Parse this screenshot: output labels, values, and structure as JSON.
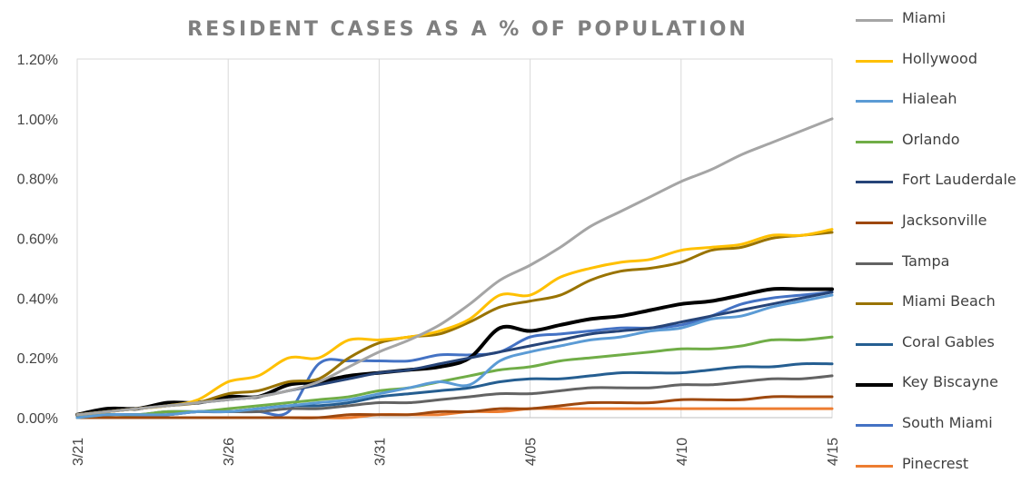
{
  "chart_data": {
    "type": "line",
    "title": "RESIDENT CASES AS A % OF POPULATION",
    "xlabel": "",
    "ylabel": "",
    "x": [
      "3/21",
      "3/22",
      "3/23",
      "3/24",
      "3/25",
      "3/26",
      "3/27",
      "3/28",
      "3/29",
      "3/30",
      "3/31",
      "4/01",
      "4/02",
      "4/03",
      "4/04",
      "4/05",
      "4/06",
      "4/07",
      "4/08",
      "4/09",
      "4/10",
      "4/11",
      "4/12",
      "4/13",
      "4/14",
      "4/15"
    ],
    "x_tick_labels": [
      "3/21",
      "3/26",
      "3/31",
      "4/05",
      "4/10",
      "4/15"
    ],
    "y_tick_labels": [
      "0.00%",
      "0.20%",
      "0.40%",
      "0.60%",
      "0.80%",
      "1.00%",
      "1.20%"
    ],
    "ylim": [
      0,
      1.2
    ],
    "y_unit": "%",
    "grid": "vertical lines at labeled dates",
    "legend_position": "right",
    "series": [
      {
        "name": "Miami",
        "color": "#a5a5a5",
        "width": 3,
        "values": [
          0.01,
          0.02,
          0.03,
          0.04,
          0.05,
          0.06,
          0.07,
          0.09,
          0.12,
          0.17,
          0.22,
          0.26,
          0.31,
          0.38,
          0.46,
          0.51,
          0.57,
          0.64,
          0.69,
          0.74,
          0.79,
          0.83,
          0.88,
          0.92,
          0.96,
          1.0
        ]
      },
      {
        "name": "Hollywood",
        "color": "#ffc000",
        "width": 3,
        "values": [
          0.01,
          0.02,
          0.03,
          0.04,
          0.06,
          0.12,
          0.14,
          0.2,
          0.2,
          0.26,
          0.26,
          0.27,
          0.29,
          0.33,
          0.41,
          0.41,
          0.47,
          0.5,
          0.52,
          0.53,
          0.56,
          0.57,
          0.58,
          0.61,
          0.61,
          0.63
        ]
      },
      {
        "name": "Hialeah",
        "color": "#5b9bd5",
        "width": 3,
        "values": [
          0.0,
          0.01,
          0.01,
          0.01,
          0.02,
          0.02,
          0.03,
          0.04,
          0.05,
          0.06,
          0.08,
          0.1,
          0.12,
          0.11,
          0.19,
          0.22,
          0.24,
          0.26,
          0.27,
          0.29,
          0.3,
          0.33,
          0.34,
          0.37,
          0.39,
          0.41
        ]
      },
      {
        "name": "Orlando",
        "color": "#70ad47",
        "width": 3,
        "values": [
          0.0,
          0.01,
          0.01,
          0.02,
          0.02,
          0.03,
          0.04,
          0.05,
          0.06,
          0.07,
          0.09,
          0.1,
          0.12,
          0.14,
          0.16,
          0.17,
          0.19,
          0.2,
          0.21,
          0.22,
          0.23,
          0.23,
          0.24,
          0.26,
          0.26,
          0.27
        ]
      },
      {
        "name": "Fort Lauderdale",
        "color": "#264478",
        "width": 3,
        "values": [
          0.01,
          0.02,
          0.03,
          0.04,
          0.05,
          0.06,
          0.07,
          0.09,
          0.11,
          0.13,
          0.15,
          0.16,
          0.18,
          0.2,
          0.22,
          0.24,
          0.26,
          0.28,
          0.29,
          0.3,
          0.32,
          0.34,
          0.36,
          0.38,
          0.4,
          0.42
        ]
      },
      {
        "name": "Jacksonville",
        "color": "#9e480e",
        "width": 3,
        "values": [
          0.0,
          0.0,
          0.0,
          0.0,
          0.0,
          0.0,
          0.0,
          0.0,
          0.0,
          0.01,
          0.01,
          0.01,
          0.02,
          0.02,
          0.03,
          0.03,
          0.04,
          0.05,
          0.05,
          0.05,
          0.06,
          0.06,
          0.06,
          0.07,
          0.07,
          0.07
        ]
      },
      {
        "name": "Tampa",
        "color": "#636363",
        "width": 3,
        "values": [
          0.0,
          0.01,
          0.01,
          0.01,
          0.02,
          0.02,
          0.02,
          0.03,
          0.03,
          0.04,
          0.05,
          0.05,
          0.06,
          0.07,
          0.08,
          0.08,
          0.09,
          0.1,
          0.1,
          0.1,
          0.11,
          0.11,
          0.12,
          0.13,
          0.13,
          0.14
        ]
      },
      {
        "name": "Miami Beach",
        "color": "#997300",
        "width": 3,
        "values": [
          0.01,
          0.02,
          0.03,
          0.04,
          0.05,
          0.08,
          0.09,
          0.12,
          0.13,
          0.2,
          0.25,
          0.27,
          0.28,
          0.32,
          0.37,
          0.39,
          0.41,
          0.46,
          0.49,
          0.5,
          0.52,
          0.56,
          0.57,
          0.6,
          0.61,
          0.62
        ]
      },
      {
        "name": "Coral Gables",
        "color": "#255e91",
        "width": 3,
        "values": [
          0.0,
          0.01,
          0.01,
          0.02,
          0.02,
          0.02,
          0.03,
          0.04,
          0.04,
          0.05,
          0.07,
          0.08,
          0.09,
          0.1,
          0.12,
          0.13,
          0.13,
          0.14,
          0.15,
          0.15,
          0.15,
          0.16,
          0.17,
          0.17,
          0.18,
          0.18
        ]
      },
      {
        "name": "Key Biscayne",
        "color": "#000000",
        "width": 4,
        "values": [
          0.01,
          0.03,
          0.03,
          0.05,
          0.05,
          0.07,
          0.07,
          0.11,
          0.12,
          0.14,
          0.15,
          0.16,
          0.17,
          0.2,
          0.3,
          0.29,
          0.31,
          0.33,
          0.34,
          0.36,
          0.38,
          0.39,
          0.41,
          0.43,
          0.43,
          0.43
        ]
      },
      {
        "name": "South Miami",
        "color": "#4472c4",
        "width": 3,
        "values": [
          0.0,
          0.01,
          0.01,
          0.01,
          0.02,
          0.02,
          0.02,
          0.02,
          0.18,
          0.19,
          0.19,
          0.19,
          0.21,
          0.21,
          0.22,
          0.27,
          0.28,
          0.29,
          0.3,
          0.3,
          0.31,
          0.34,
          0.38,
          0.4,
          0.41,
          0.42
        ]
      },
      {
        "name": "Pinecrest",
        "color": "#ed7d31",
        "width": 3,
        "values": [
          0.0,
          0.0,
          0.0,
          0.0,
          0.0,
          0.0,
          0.0,
          0.0,
          0.0,
          0.0,
          0.01,
          0.01,
          0.01,
          0.02,
          0.02,
          0.03,
          0.03,
          0.03,
          0.03,
          0.03,
          0.03,
          0.03,
          0.03,
          0.03,
          0.03,
          0.03
        ]
      }
    ]
  }
}
